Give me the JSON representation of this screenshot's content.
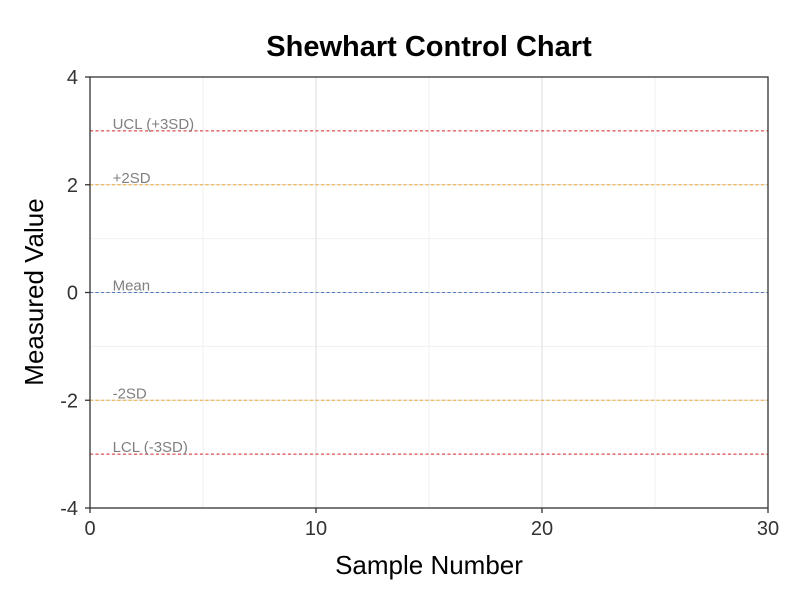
{
  "chart_data": {
    "type": "line",
    "title": "Shewhart Control Chart",
    "xlabel": "Sample Number",
    "ylabel": "Measured Value",
    "xlim": [
      0,
      30
    ],
    "ylim": [
      -4,
      4
    ],
    "x_ticks": [
      0,
      10,
      20,
      30
    ],
    "x_minor_ticks": [
      5,
      15,
      25
    ],
    "y_ticks": [
      -4,
      -2,
      0,
      2,
      4
    ],
    "y_minor_ticks": [
      -3,
      -1,
      1,
      3
    ],
    "grid": true,
    "series": [],
    "reference_lines": [
      {
        "label": "UCL (+3SD)",
        "y": 3,
        "color": "#d62728"
      },
      {
        "label": "+2SD",
        "y": 2,
        "color": "#f0a830"
      },
      {
        "label": "Mean",
        "y": 0,
        "color": "#4c78c0"
      },
      {
        "label": "-2SD",
        "y": -2,
        "color": "#f0a830"
      },
      {
        "label": "LCL (-3SD)",
        "y": -3,
        "color": "#d62728"
      }
    ],
    "label_x": 1
  }
}
